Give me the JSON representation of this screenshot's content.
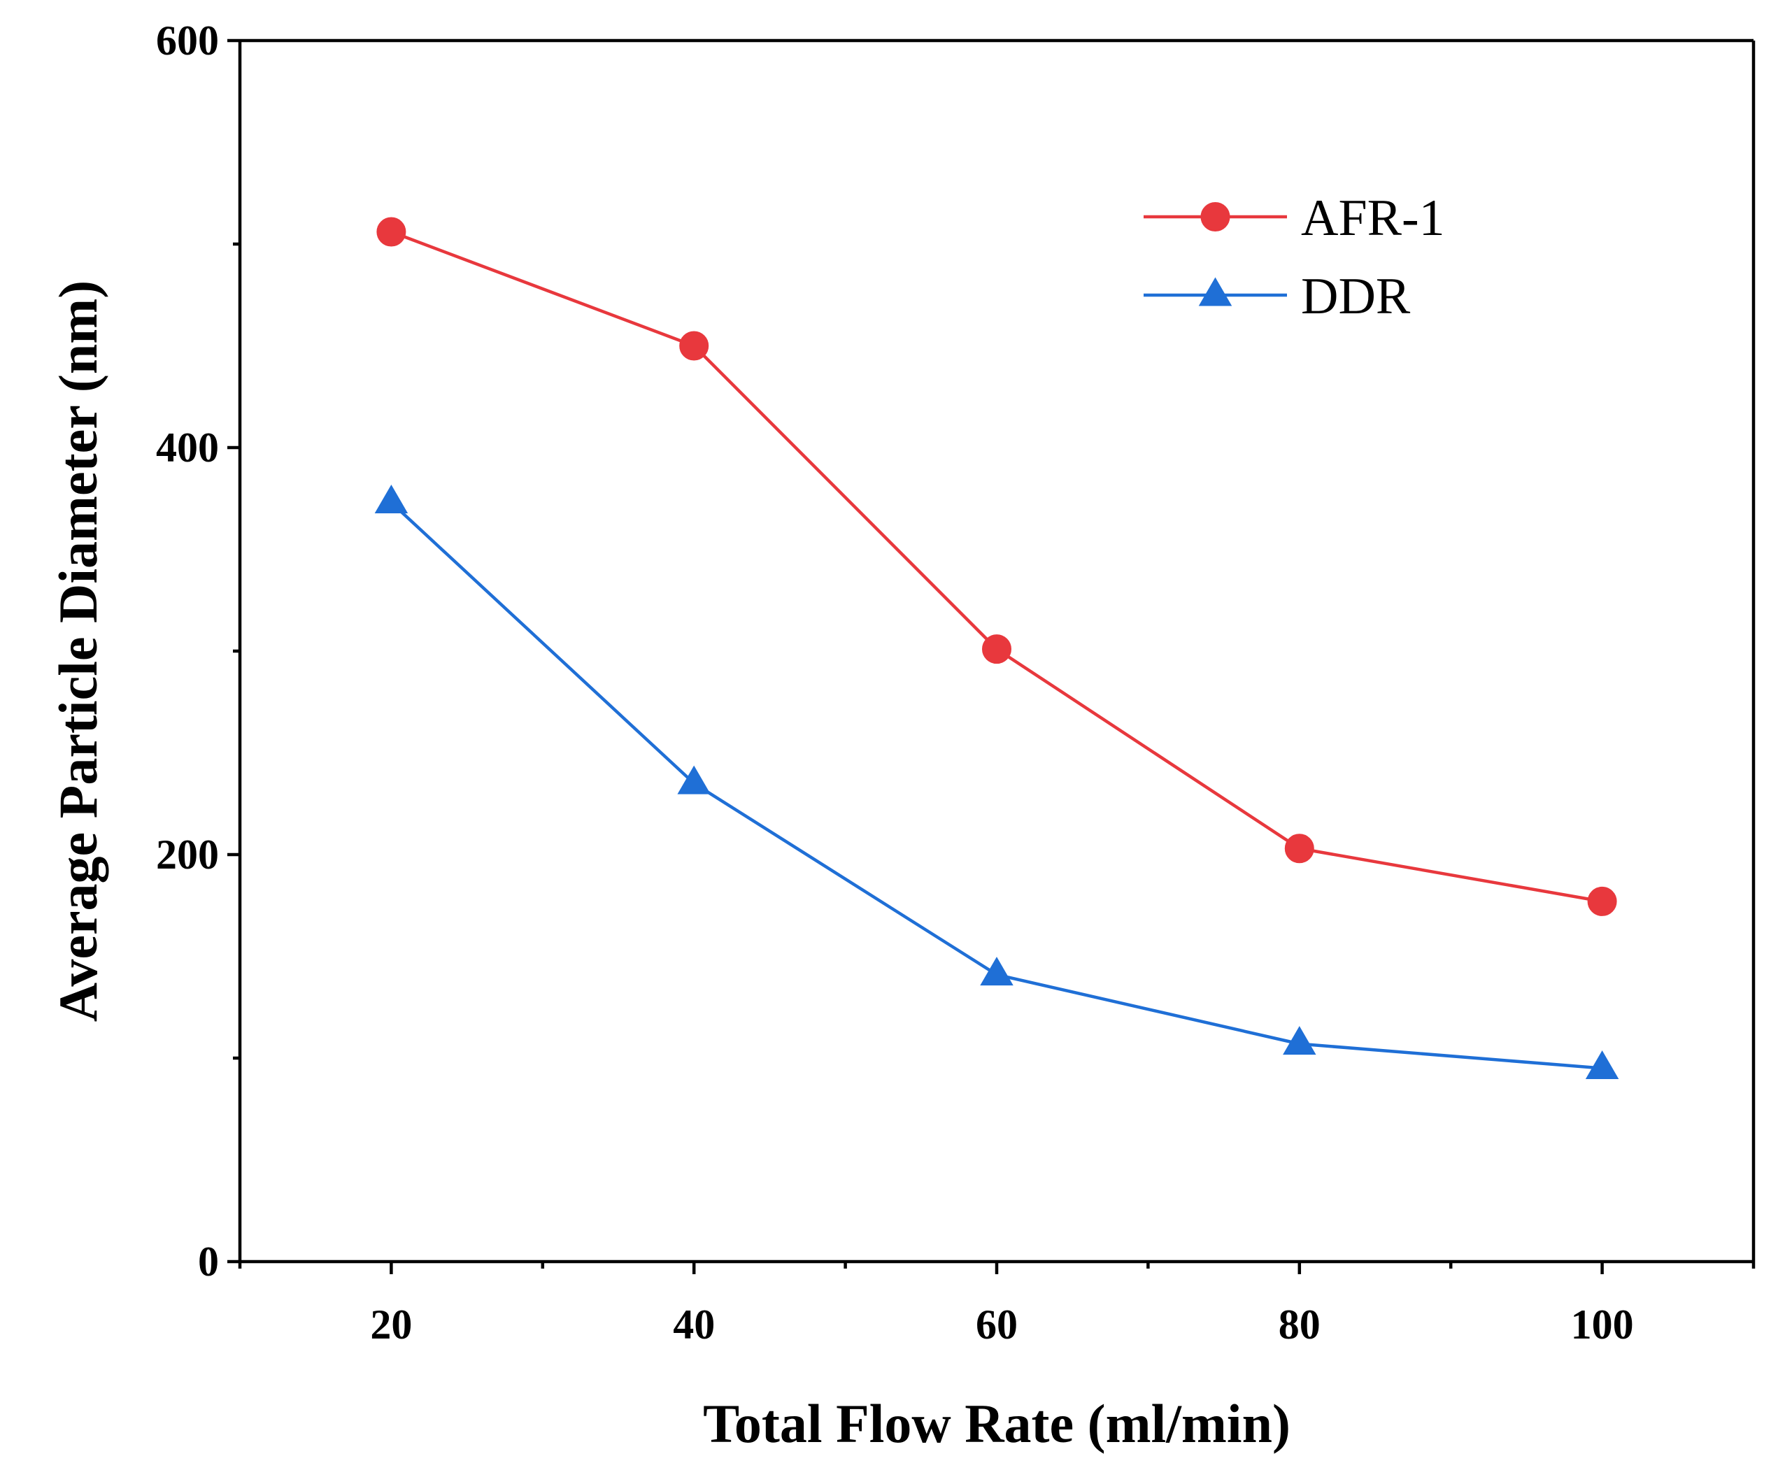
{
  "chart_data": {
    "type": "line",
    "title": "",
    "xlabel": "Total Flow Rate (ml/min)",
    "ylabel": "Average Particle Diameter (nm)",
    "xlim": [
      10,
      110
    ],
    "ylim": [
      0,
      600
    ],
    "xticks_major": [
      20,
      40,
      60,
      80,
      100
    ],
    "xticks_minor": [
      10,
      30,
      50,
      70,
      90,
      110
    ],
    "yticks_major": [
      0,
      200,
      400,
      600
    ],
    "yticks_minor": [
      100,
      300,
      500
    ],
    "x_tick_labels": [
      "20",
      "40",
      "60",
      "80",
      "100"
    ],
    "y_tick_labels": [
      "0",
      "200",
      "400",
      "600"
    ],
    "grid": false,
    "legend_position": "top-right",
    "x": [
      20,
      40,
      60,
      80,
      100
    ],
    "series": [
      {
        "name": "AFR-1",
        "marker": "circle",
        "color": "#e8383d",
        "values": [
          506,
          450,
          301,
          203,
          177
        ]
      },
      {
        "name": "DDR",
        "marker": "triangle",
        "color": "#1f6fd6",
        "values": [
          373,
          235,
          141,
          107,
          95
        ]
      }
    ]
  }
}
